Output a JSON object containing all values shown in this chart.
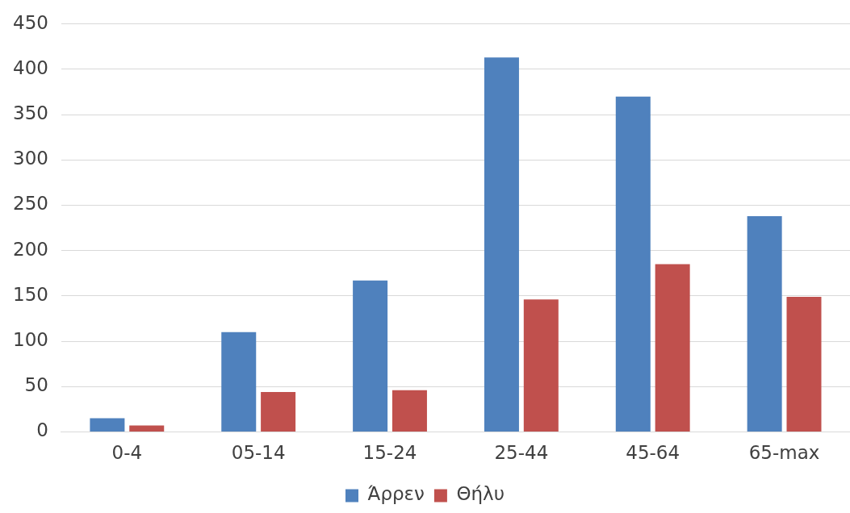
{
  "chart_data": {
    "type": "bar",
    "categories": [
      "0-4",
      "05-14",
      "15-24",
      "25-44",
      "45-64",
      "65-max"
    ],
    "series": [
      {
        "name": "Άρρεν",
        "color": "#4f81bd",
        "values": [
          15,
          110,
          167,
          413,
          370,
          238
        ]
      },
      {
        "name": "Θήλυ",
        "color": "#c0504d",
        "values": [
          7,
          44,
          46,
          146,
          185,
          149
        ]
      }
    ],
    "ylim": [
      0,
      450
    ],
    "yticks": [
      0,
      50,
      100,
      150,
      200,
      250,
      300,
      350,
      400,
      450
    ],
    "grid": "y",
    "legend": "bottom"
  }
}
